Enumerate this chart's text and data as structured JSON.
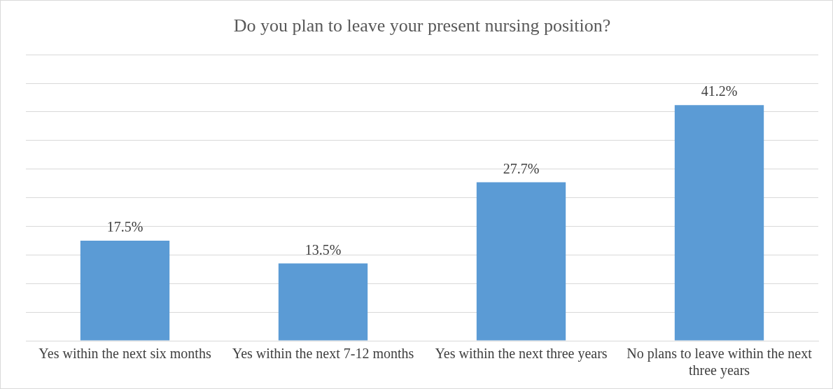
{
  "chart_data": {
    "type": "bar",
    "title": "Do you plan to leave your present nursing position?",
    "categories": [
      "Yes within the next six months",
      "Yes within the next 7-12 months",
      "Yes within the next three years",
      "No plans to leave within the next three years"
    ],
    "values": [
      17.5,
      13.5,
      27.7,
      41.2
    ],
    "color": "#5b9bd5",
    "value_labels": [
      "17.5%",
      "13.5%",
      "27.7%",
      "41.2%"
    ],
    "ylim": [
      0,
      50
    ],
    "yticks": [
      {
        "value": 0,
        "label": null
      },
      {
        "value": 5,
        "label": null
      },
      {
        "value": 10,
        "label": null
      },
      {
        "value": 15,
        "label": null
      },
      {
        "value": 20,
        "label": null
      },
      {
        "value": 25,
        "label": null
      },
      {
        "value": 30,
        "label": null
      },
      {
        "value": 35,
        "label": null
      },
      {
        "value": 40,
        "label": null
      },
      {
        "value": 45,
        "label": null
      },
      {
        "value": 50,
        "label": null
      }
    ],
    "grid": "y",
    "tick_labels": "x",
    "legend": false
  }
}
